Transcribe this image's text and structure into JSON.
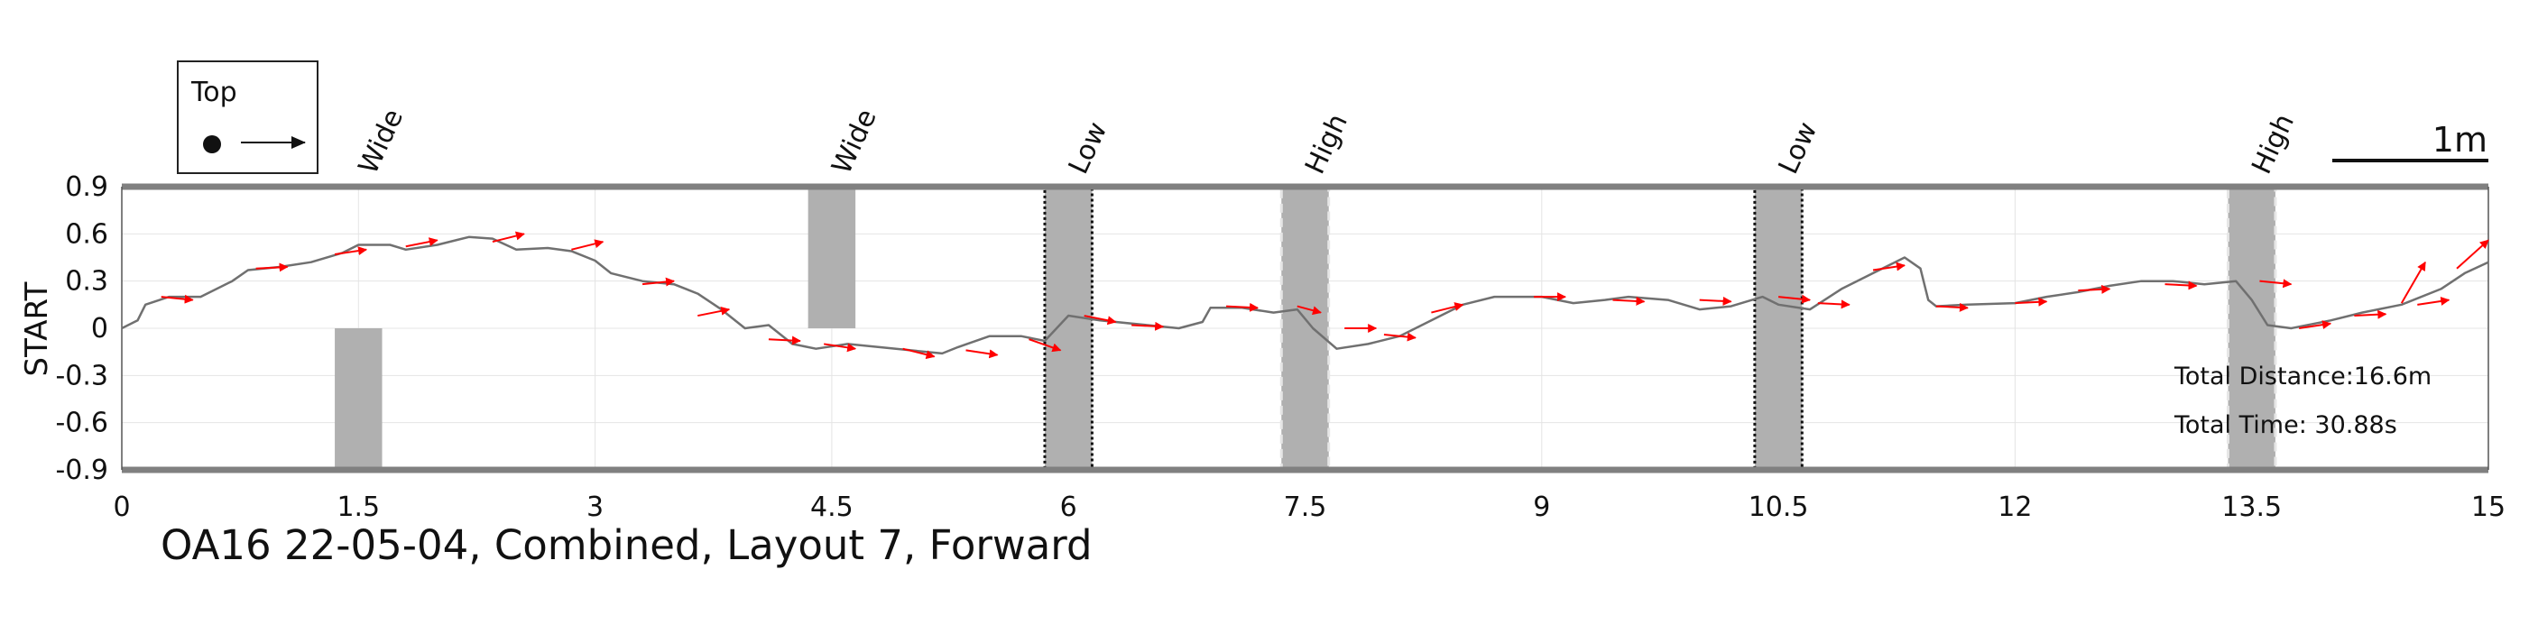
{
  "chart_data": {
    "type": "line",
    "title": "",
    "xlabel": "",
    "ylabel": "START",
    "xlim": [
      0,
      15
    ],
    "ylim": [
      -0.9,
      0.9
    ],
    "x_ticks": [
      "0",
      "1.5",
      "3",
      "4.5",
      "6",
      "7.5",
      "9",
      "10.5",
      "12",
      "13.5",
      "15"
    ],
    "x_tick_values": [
      0,
      1.5,
      3,
      4.5,
      6,
      7.5,
      9,
      10.5,
      12,
      13.5,
      15
    ],
    "y_ticks": [
      "0.9",
      "0.6",
      "0.3",
      "0",
      "-0.3",
      "-0.6",
      "-0.9"
    ],
    "y_tick_values": [
      0.9,
      0.6,
      0.3,
      0,
      -0.3,
      -0.6,
      -0.9
    ],
    "grid": true,
    "colors": {
      "path": "#707070",
      "arrows": "#ff0000",
      "obstacle": "#b0b0b0",
      "border": "#808080"
    },
    "path": [
      [
        0.0,
        0.0
      ],
      [
        0.1,
        0.05
      ],
      [
        0.15,
        0.15
      ],
      [
        0.3,
        0.2
      ],
      [
        0.5,
        0.2
      ],
      [
        0.7,
        0.3
      ],
      [
        0.8,
        0.37
      ],
      [
        1.0,
        0.39
      ],
      [
        1.2,
        0.42
      ],
      [
        1.4,
        0.48
      ],
      [
        1.5,
        0.53
      ],
      [
        1.7,
        0.53
      ],
      [
        1.8,
        0.5
      ],
      [
        2.0,
        0.53
      ],
      [
        2.2,
        0.58
      ],
      [
        2.35,
        0.57
      ],
      [
        2.5,
        0.5
      ],
      [
        2.7,
        0.51
      ],
      [
        2.85,
        0.49
      ],
      [
        3.0,
        0.43
      ],
      [
        3.1,
        0.35
      ],
      [
        3.3,
        0.3
      ],
      [
        3.5,
        0.28
      ],
      [
        3.65,
        0.22
      ],
      [
        3.8,
        0.12
      ],
      [
        3.95,
        0.0
      ],
      [
        4.1,
        0.02
      ],
      [
        4.25,
        -0.1
      ],
      [
        4.4,
        -0.13
      ],
      [
        4.6,
        -0.1
      ],
      [
        4.8,
        -0.12
      ],
      [
        5.0,
        -0.14
      ],
      [
        5.2,
        -0.16
      ],
      [
        5.3,
        -0.12
      ],
      [
        5.5,
        -0.05
      ],
      [
        5.7,
        -0.05
      ],
      [
        5.85,
        -0.08
      ],
      [
        6.0,
        0.08
      ],
      [
        6.2,
        0.05
      ],
      [
        6.5,
        0.02
      ],
      [
        6.7,
        0.0
      ],
      [
        6.85,
        0.04
      ],
      [
        6.9,
        0.13
      ],
      [
        7.1,
        0.13
      ],
      [
        7.3,
        0.1
      ],
      [
        7.45,
        0.12
      ],
      [
        7.55,
        0.0
      ],
      [
        7.7,
        -0.13
      ],
      [
        7.9,
        -0.1
      ],
      [
        8.1,
        -0.05
      ],
      [
        8.3,
        0.05
      ],
      [
        8.5,
        0.15
      ],
      [
        8.7,
        0.2
      ],
      [
        9.0,
        0.2
      ],
      [
        9.2,
        0.16
      ],
      [
        9.4,
        0.18
      ],
      [
        9.55,
        0.2
      ],
      [
        9.8,
        0.18
      ],
      [
        10.0,
        0.12
      ],
      [
        10.2,
        0.14
      ],
      [
        10.4,
        0.2
      ],
      [
        10.5,
        0.15
      ],
      [
        10.7,
        0.12
      ],
      [
        10.9,
        0.25
      ],
      [
        11.1,
        0.35
      ],
      [
        11.3,
        0.45
      ],
      [
        11.4,
        0.38
      ],
      [
        11.45,
        0.18
      ],
      [
        11.5,
        0.14
      ],
      [
        11.7,
        0.15
      ],
      [
        12.0,
        0.16
      ],
      [
        12.2,
        0.2
      ],
      [
        12.4,
        0.23
      ],
      [
        12.6,
        0.27
      ],
      [
        12.8,
        0.3
      ],
      [
        13.0,
        0.3
      ],
      [
        13.2,
        0.28
      ],
      [
        13.4,
        0.3
      ],
      [
        13.5,
        0.18
      ],
      [
        13.6,
        0.02
      ],
      [
        13.75,
        0.0
      ],
      [
        14.0,
        0.05
      ],
      [
        14.2,
        0.1
      ],
      [
        14.45,
        0.15
      ],
      [
        14.7,
        0.25
      ],
      [
        14.85,
        0.35
      ],
      [
        15.0,
        0.42
      ]
    ],
    "heading_arrows": [
      [
        0.25,
        0.2,
        0.45,
        0.18
      ],
      [
        0.85,
        0.38,
        1.05,
        0.39
      ],
      [
        1.35,
        0.47,
        1.55,
        0.5
      ],
      [
        1.8,
        0.52,
        2.0,
        0.56
      ],
      [
        2.35,
        0.55,
        2.55,
        0.6
      ],
      [
        2.85,
        0.5,
        3.05,
        0.55
      ],
      [
        3.3,
        0.28,
        3.5,
        0.3
      ],
      [
        3.65,
        0.08,
        3.85,
        0.12
      ],
      [
        4.1,
        -0.07,
        4.3,
        -0.08
      ],
      [
        4.45,
        -0.1,
        4.65,
        -0.13
      ],
      [
        4.95,
        -0.13,
        5.15,
        -0.18
      ],
      [
        5.35,
        -0.14,
        5.55,
        -0.17
      ],
      [
        5.75,
        -0.07,
        5.95,
        -0.14
      ],
      [
        6.1,
        0.08,
        6.3,
        0.04
      ],
      [
        6.4,
        0.02,
        6.6,
        0.01
      ],
      [
        7.0,
        0.14,
        7.2,
        0.13
      ],
      [
        7.45,
        0.14,
        7.6,
        0.1
      ],
      [
        7.75,
        0.0,
        7.95,
        0.0
      ],
      [
        8.0,
        -0.04,
        8.2,
        -0.06
      ],
      [
        8.3,
        0.1,
        8.5,
        0.15
      ],
      [
        8.95,
        0.2,
        9.15,
        0.2
      ],
      [
        9.45,
        0.18,
        9.65,
        0.17
      ],
      [
        10.0,
        0.18,
        10.2,
        0.17
      ],
      [
        10.5,
        0.2,
        10.7,
        0.18
      ],
      [
        10.75,
        0.16,
        10.95,
        0.15
      ],
      [
        11.1,
        0.37,
        11.3,
        0.4
      ],
      [
        11.5,
        0.14,
        11.7,
        0.13
      ],
      [
        12.0,
        0.16,
        12.2,
        0.17
      ],
      [
        12.4,
        0.24,
        12.6,
        0.25
      ],
      [
        12.95,
        0.28,
        13.15,
        0.27
      ],
      [
        13.55,
        0.3,
        13.75,
        0.28
      ],
      [
        13.8,
        0.0,
        14.0,
        0.03
      ],
      [
        14.15,
        0.08,
        14.35,
        0.09
      ],
      [
        14.45,
        0.16,
        14.6,
        0.42
      ],
      [
        14.55,
        0.15,
        14.75,
        0.18
      ],
      [
        14.8,
        0.38,
        15.0,
        0.56
      ]
    ],
    "obstacles": [
      {
        "label": "Wide",
        "x": 1.5,
        "y_range": [
          -0.9,
          0.0
        ],
        "style": "gray"
      },
      {
        "label": "Wide",
        "x": 4.5,
        "y_range": [
          0.0,
          0.9
        ],
        "style": "gray"
      },
      {
        "label": "Low",
        "x": 6.0,
        "y_range": [
          -0.9,
          0.9
        ],
        "style": "dotted"
      },
      {
        "label": "High",
        "x": 7.5,
        "y_range": [
          -0.9,
          0.9
        ],
        "style": "dashed"
      },
      {
        "label": "Low",
        "x": 10.5,
        "y_range": [
          -0.9,
          0.9
        ],
        "style": "dotted"
      },
      {
        "label": "High",
        "x": 13.5,
        "y_range": [
          -0.9,
          0.9
        ],
        "style": "dashed"
      }
    ],
    "legend": {
      "title": "Top",
      "placement": "top-left"
    },
    "scale_bar": {
      "label": "1m",
      "length_m": 1
    },
    "annotations": [
      "Total Distance:16.6m",
      "Total Time: 30.88s"
    ]
  },
  "caption": "OA16 22-05-04, Combined, Layout 7, Forward"
}
